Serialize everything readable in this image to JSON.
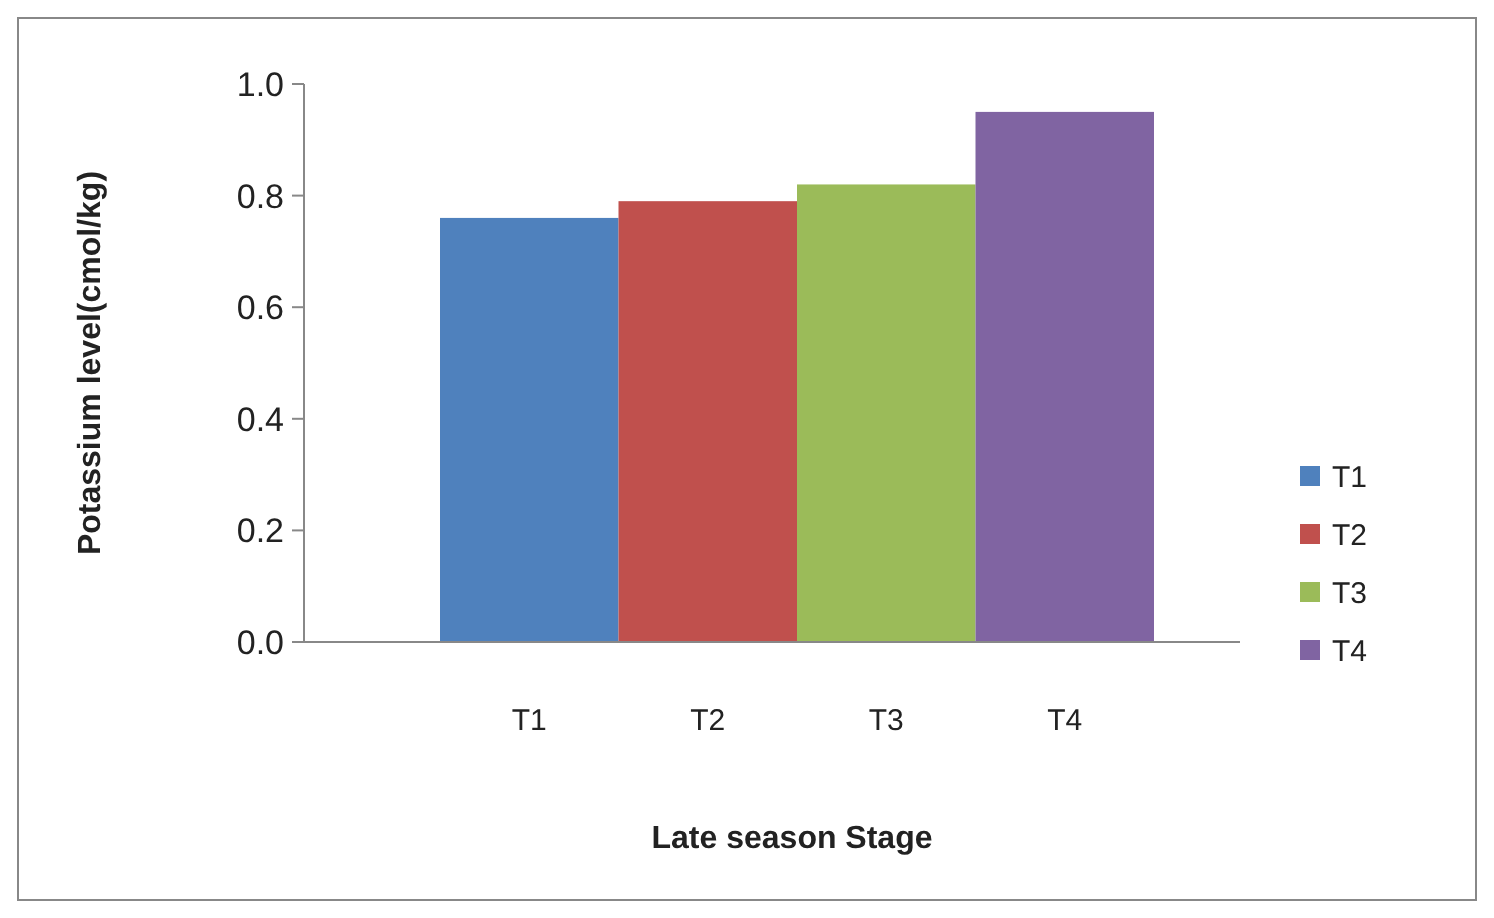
{
  "chart_data": {
    "type": "bar",
    "xlabel": "Late season Stage",
    "ylabel": "Potassium level(cmol/kg)",
    "categories": [
      "T1",
      "T2",
      "T3",
      "T4"
    ],
    "stacked": true,
    "series": [
      {
        "name": "T1",
        "color": "#4f81bd",
        "values": [
          0.76,
          null,
          null,
          null
        ]
      },
      {
        "name": "T2",
        "color": "#c0504d",
        "values": [
          null,
          0.79,
          null,
          null
        ]
      },
      {
        "name": "T3",
        "color": "#9bbb59",
        "values": [
          null,
          null,
          0.82,
          null
        ]
      },
      {
        "name": "T4",
        "color": "#8064a2",
        "values": [
          null,
          null,
          null,
          0.95
        ]
      }
    ],
    "ylim": [
      0,
      1
    ],
    "yticks": [
      {
        "value": 0,
        "label": "0.0"
      },
      {
        "value": 0.2,
        "label": "0.2"
      },
      {
        "value": 0.4,
        "label": "0.4"
      },
      {
        "value": 0.6,
        "label": "0.6"
      },
      {
        "value": 0.8,
        "label": "0.8"
      },
      {
        "value": 1,
        "label": "1.0"
      }
    ],
    "legend": "right"
  }
}
